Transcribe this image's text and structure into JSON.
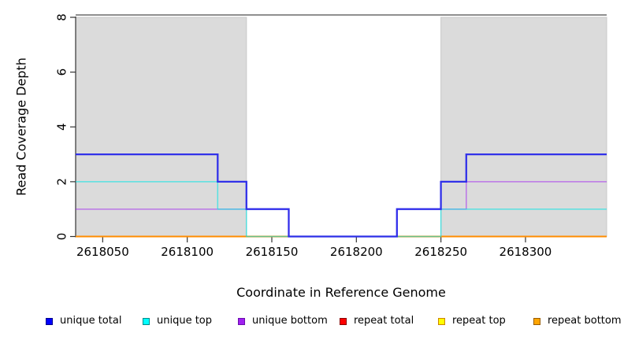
{
  "chart_data": {
    "type": "line",
    "subtype": "step",
    "title": "",
    "xlabel": "Coordinate in Reference Genome",
    "ylabel": "Read Coverage Depth",
    "x_domain": [
      2618034,
      2618348
    ],
    "y_domain": [
      0,
      8
    ],
    "x_ticks": [
      2618050,
      2618100,
      2618150,
      2618200,
      2618250,
      2618300
    ],
    "y_ticks": [
      0,
      2,
      4,
      6,
      8
    ],
    "grid": false,
    "legend_position": "bottom",
    "shaded_regions": [
      {
        "x0": 2618034,
        "x1": 2618135,
        "fill": "#DBDBDB"
      },
      {
        "x0": 2618250,
        "x1": 2618348,
        "fill": "#DBDBDB"
      }
    ],
    "top_border_color": "#8F8F8F",
    "axis_color": "#333333",
    "series": [
      {
        "name": "unique total",
        "color": "#2828EA",
        "width": 2.3,
        "opacity": 0.95,
        "steps": [
          [
            2618034,
            3
          ],
          [
            2618118,
            2
          ],
          [
            2618135,
            1
          ],
          [
            2618160,
            0
          ],
          [
            2618224,
            1
          ],
          [
            2618250,
            2
          ],
          [
            2618265,
            3
          ],
          [
            2618348,
            3
          ]
        ]
      },
      {
        "name": "unique top",
        "color": "#00E5E5",
        "width": 1.5,
        "opacity": 0.6,
        "steps": [
          [
            2618034,
            2
          ],
          [
            2618118,
            1
          ],
          [
            2618135,
            0
          ],
          [
            2618250,
            1
          ],
          [
            2618348,
            1
          ]
        ]
      },
      {
        "name": "unique bottom",
        "color": "#A020F0",
        "width": 1.5,
        "opacity": 0.55,
        "steps": [
          [
            2618034,
            1
          ],
          [
            2618160,
            0
          ],
          [
            2618224,
            1
          ],
          [
            2618265,
            2
          ],
          [
            2618348,
            2
          ]
        ]
      },
      {
        "name": "repeat total",
        "color": "#DD0000",
        "width": 1.4,
        "opacity": 1,
        "steps": [
          [
            2618034,
            0
          ],
          [
            2618348,
            0
          ]
        ]
      },
      {
        "name": "repeat top",
        "color": "#FFFF00",
        "width": 1.6,
        "opacity": 1,
        "steps": [
          [
            2618034,
            0
          ],
          [
            2618348,
            0
          ]
        ]
      },
      {
        "name": "repeat bottom",
        "color": "#FF8C00",
        "width": 2.0,
        "opacity": 1,
        "steps": [
          [
            2618034,
            0
          ],
          [
            2618348,
            0
          ]
        ]
      }
    ]
  },
  "legend": {
    "items": [
      {
        "label": "unique total",
        "fill": "#0000FF",
        "border": "#00008B"
      },
      {
        "label": "unique top",
        "fill": "#00FFFF",
        "border": "#008B8B"
      },
      {
        "label": "unique bottom",
        "fill": "#A020F0",
        "border": "#6A0DAD"
      },
      {
        "label": "repeat total",
        "fill": "#FF0000",
        "border": "#8B0000"
      },
      {
        "label": "repeat top",
        "fill": "#FFFF00",
        "border": "#CC8400"
      },
      {
        "label": "repeat bottom",
        "fill": "#FFA500",
        "border": "#995C00"
      }
    ]
  }
}
